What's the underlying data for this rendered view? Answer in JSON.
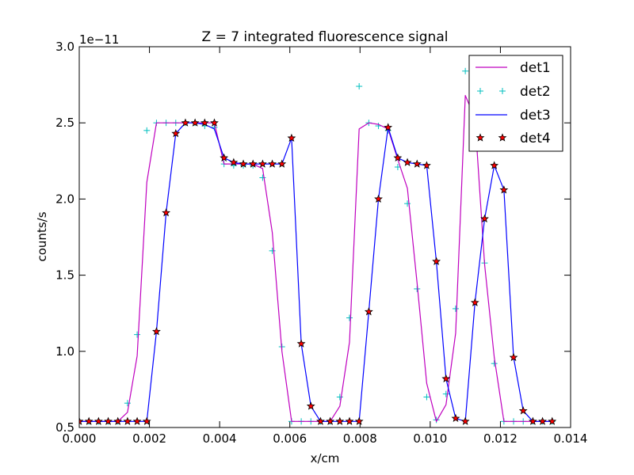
{
  "chart_data": {
    "type": "line",
    "title": "Z = 7 integrated fluorescence signal",
    "xlabel": "x/cm",
    "ylabel": "counts/s",
    "offset_text": "1e−11",
    "y_scale_factor": 1e-11,
    "xlim": [
      0.0,
      0.014
    ],
    "ylim": [
      0.5,
      3.0
    ],
    "x_ticks": [
      0.0,
      0.002,
      0.004,
      0.006,
      0.008,
      0.01,
      0.012,
      0.014
    ],
    "x_tick_labels": [
      "0.000",
      "0.002",
      "0.004",
      "0.006",
      "0.008",
      "0.010",
      "0.012",
      "0.014"
    ],
    "y_ticks": [
      0.5,
      1.0,
      1.5,
      2.0,
      2.5,
      3.0
    ],
    "y_tick_labels": [
      "0.5",
      "1.0",
      "1.5",
      "2.0",
      "2.5",
      "3.0"
    ],
    "grid": false,
    "legend_position": "top-right",
    "series": [
      {
        "name": "det1",
        "style": "line",
        "color": "#bf00bf",
        "x": [
          0.0,
          0.000275,
          0.00055,
          0.000825,
          0.0011,
          0.001375,
          0.00165,
          0.001925,
          0.0022,
          0.002475,
          0.00275,
          0.003025,
          0.0033,
          0.003575,
          0.00385,
          0.004125,
          0.0044,
          0.004675,
          0.00495,
          0.005225,
          0.0055,
          0.005775,
          0.00605,
          0.006325,
          0.0066,
          0.006875,
          0.00715,
          0.007425,
          0.0077,
          0.007975,
          0.00825,
          0.008525,
          0.0088,
          0.009075,
          0.00935,
          0.009625,
          0.0099,
          0.010175,
          0.01045,
          0.010725,
          0.011,
          0.011275,
          0.01155,
          0.011825,
          0.0121,
          0.012375,
          0.01265,
          0.012925,
          0.0132,
          0.013475
        ],
        "values": [
          0.54,
          0.54,
          0.54,
          0.54,
          0.54,
          0.6,
          0.97,
          2.11,
          2.5,
          2.5,
          2.5,
          2.5,
          2.5,
          2.5,
          2.5,
          2.23,
          2.23,
          2.23,
          2.23,
          2.2,
          1.78,
          1.0,
          0.54,
          0.54,
          0.54,
          0.54,
          0.54,
          0.64,
          1.06,
          2.46,
          2.5,
          2.49,
          2.46,
          2.26,
          2.07,
          1.45,
          0.79,
          0.54,
          0.65,
          1.12,
          2.68,
          2.53,
          1.57,
          0.96,
          0.54,
          0.54,
          0.54,
          0.54,
          0.54,
          0.54
        ]
      },
      {
        "name": "det2",
        "style": "marker",
        "marker": "+",
        "color": "#00bfbf",
        "x": [
          0.0,
          0.000275,
          0.00055,
          0.000825,
          0.0011,
          0.001375,
          0.00165,
          0.001925,
          0.0022,
          0.002475,
          0.00275,
          0.003025,
          0.0033,
          0.003575,
          0.00385,
          0.004125,
          0.0044,
          0.004675,
          0.00495,
          0.005225,
          0.0055,
          0.005775,
          0.00605,
          0.006325,
          0.0066,
          0.006875,
          0.00715,
          0.007425,
          0.0077,
          0.007975,
          0.00825,
          0.008525,
          0.0088,
          0.009075,
          0.00935,
          0.009625,
          0.0099,
          0.010175,
          0.01045,
          0.010725,
          0.011,
          0.011275,
          0.01155,
          0.011825,
          0.0121,
          0.012375,
          0.01265,
          0.012925,
          0.0132,
          0.013475
        ],
        "values": [
          0.54,
          0.54,
          0.54,
          0.54,
          0.54,
          0.66,
          1.11,
          2.45,
          2.5,
          2.5,
          2.5,
          2.5,
          2.5,
          2.48,
          2.47,
          2.23,
          2.22,
          2.22,
          2.22,
          2.14,
          1.66,
          1.03,
          0.54,
          0.54,
          0.54,
          0.54,
          0.54,
          0.7,
          1.22,
          2.74,
          2.5,
          2.48,
          2.45,
          2.21,
          1.97,
          1.41,
          0.7,
          0.55,
          0.72,
          1.28,
          2.84,
          2.35,
          1.58,
          0.92,
          0.54,
          0.54,
          0.54,
          0.54,
          0.54,
          0.54
        ]
      },
      {
        "name": "det3",
        "style": "line",
        "color": "#0000ff",
        "x": [
          0.0,
          0.000275,
          0.00055,
          0.000825,
          0.0011,
          0.001375,
          0.00165,
          0.001925,
          0.0022,
          0.002475,
          0.00275,
          0.003025,
          0.0033,
          0.003575,
          0.00385,
          0.004125,
          0.0044,
          0.004675,
          0.00495,
          0.005225,
          0.0055,
          0.005775,
          0.00605,
          0.006325,
          0.0066,
          0.006875,
          0.00715,
          0.007425,
          0.0077,
          0.007975,
          0.00825,
          0.008525,
          0.0088,
          0.009075,
          0.00935,
          0.009625,
          0.0099,
          0.010175,
          0.01045,
          0.010725,
          0.011,
          0.011275,
          0.01155,
          0.011825,
          0.0121,
          0.012375,
          0.01265,
          0.012925,
          0.0132,
          0.013475
        ],
        "values": [
          0.54,
          0.54,
          0.54,
          0.54,
          0.54,
          0.54,
          0.54,
          0.54,
          1.13,
          1.91,
          2.43,
          2.5,
          2.5,
          2.49,
          2.46,
          2.27,
          2.24,
          2.23,
          2.23,
          2.23,
          2.23,
          2.23,
          2.4,
          1.05,
          0.64,
          0.54,
          0.54,
          0.54,
          0.54,
          0.54,
          1.26,
          2.0,
          2.47,
          2.27,
          2.24,
          2.23,
          2.22,
          1.59,
          0.82,
          0.56,
          0.54,
          1.32,
          1.87,
          2.22,
          2.06,
          0.96,
          0.61,
          0.54,
          0.54,
          0.54
        ]
      },
      {
        "name": "det4",
        "style": "marker",
        "marker": "*",
        "color": "#ff0000",
        "edge_color": "#000000",
        "x": [
          0.0,
          0.000275,
          0.00055,
          0.000825,
          0.0011,
          0.001375,
          0.00165,
          0.001925,
          0.0022,
          0.002475,
          0.00275,
          0.003025,
          0.0033,
          0.003575,
          0.00385,
          0.004125,
          0.0044,
          0.004675,
          0.00495,
          0.005225,
          0.0055,
          0.005775,
          0.00605,
          0.006325,
          0.0066,
          0.006875,
          0.00715,
          0.007425,
          0.0077,
          0.007975,
          0.00825,
          0.008525,
          0.0088,
          0.009075,
          0.00935,
          0.009625,
          0.0099,
          0.010175,
          0.01045,
          0.010725,
          0.011,
          0.011275,
          0.01155,
          0.011825,
          0.0121,
          0.012375,
          0.01265,
          0.012925,
          0.0132,
          0.013475
        ],
        "values": [
          0.54,
          0.54,
          0.54,
          0.54,
          0.54,
          0.54,
          0.54,
          0.54,
          1.13,
          1.91,
          2.43,
          2.5,
          2.5,
          2.5,
          2.5,
          2.27,
          2.24,
          2.23,
          2.23,
          2.23,
          2.23,
          2.23,
          2.4,
          1.05,
          0.64,
          0.54,
          0.54,
          0.54,
          0.54,
          0.54,
          1.26,
          2.0,
          2.47,
          2.27,
          2.24,
          2.23,
          2.22,
          1.59,
          0.82,
          0.56,
          0.54,
          1.32,
          1.87,
          2.22,
          2.06,
          0.96,
          0.61,
          0.54,
          0.54,
          0.54
        ]
      }
    ]
  }
}
